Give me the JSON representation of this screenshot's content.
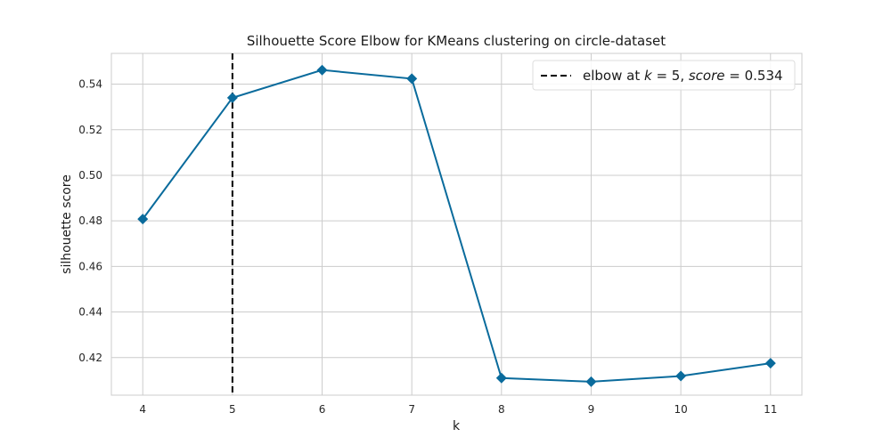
{
  "chart_data": {
    "type": "line",
    "title": "Silhouette Score Elbow for KMeans clustering on circle-dataset",
    "xlabel": "k",
    "ylabel": "silhouette score",
    "x": [
      4,
      5,
      6,
      7,
      8,
      9,
      10,
      11
    ],
    "series": [
      {
        "values": [
          0.4808,
          0.534,
          0.5462,
          0.5424,
          0.411,
          0.4094,
          0.4119,
          0.4175
        ]
      }
    ],
    "xlim": [
      3.65,
      11.35
    ],
    "ylim": [
      0.4035,
      0.5535
    ],
    "xticks": [
      "4",
      "5",
      "6",
      "7",
      "8",
      "9",
      "10",
      "11"
    ],
    "yticks": [
      "0.42",
      "0.44",
      "0.46",
      "0.48",
      "0.50",
      "0.52",
      "0.54"
    ],
    "ytick_values": [
      0.42,
      0.44,
      0.46,
      0.48,
      0.5,
      0.52,
      0.54
    ],
    "grid": true,
    "line_color": "#0a6b9c",
    "elbow": {
      "k": 5,
      "score": 0.534,
      "line_color": "#000000"
    },
    "legend": {
      "position": "top-right",
      "prefix": "elbow at ",
      "k_symbol": "k",
      "k_eq": " = 5, ",
      "score_symbol": "score",
      "score_eq": " = 0.534"
    }
  }
}
